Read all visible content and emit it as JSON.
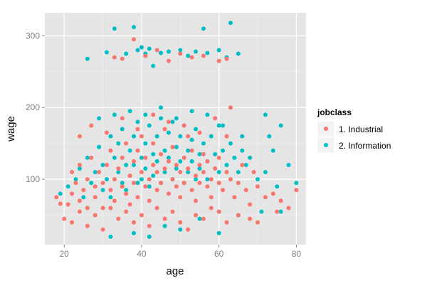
{
  "chart_data": {
    "type": "scatter",
    "title": "",
    "xlabel": "age",
    "ylabel": "wage",
    "xlim": [
      15,
      82.5
    ],
    "ylim": [
      9,
      332
    ],
    "x_ticks": [
      20,
      40,
      60,
      80
    ],
    "y_ticks": [
      100,
      200,
      300
    ],
    "grid": true,
    "legend": {
      "title": "jobclass",
      "placement": "right",
      "entries": [
        "1. Industrial",
        "2. Information"
      ]
    },
    "series": [
      {
        "name": "1. Industrial",
        "color": "#F8766D",
        "points": [
          [
            18,
            75
          ],
          [
            19,
            66
          ],
          [
            21,
            65
          ],
          [
            22,
            80
          ],
          [
            22,
            110
          ],
          [
            23,
            95
          ],
          [
            24,
            70
          ],
          [
            24,
            120
          ],
          [
            25,
            85
          ],
          [
            26,
            100
          ],
          [
            26,
            60
          ],
          [
            27,
            130
          ],
          [
            28,
            90
          ],
          [
            28,
            75
          ],
          [
            29,
            110
          ],
          [
            30,
            95
          ],
          [
            30,
            60
          ],
          [
            31,
            120
          ],
          [
            32,
            85
          ],
          [
            32,
            140
          ],
          [
            33,
            100
          ],
          [
            33,
            70
          ],
          [
            34,
            115
          ],
          [
            35,
            90
          ],
          [
            35,
            130
          ],
          [
            36,
            80
          ],
          [
            36,
            150
          ],
          [
            37,
            105
          ],
          [
            37,
            65
          ],
          [
            38,
            125
          ],
          [
            38,
            95
          ],
          [
            39,
            140
          ],
          [
            39,
            75
          ],
          [
            40,
            110
          ],
          [
            40,
            160
          ],
          [
            41,
            90
          ],
          [
            41,
            130
          ],
          [
            42,
            100
          ],
          [
            42,
            70
          ],
          [
            43,
            120
          ],
          [
            43,
            150
          ],
          [
            44,
            85
          ],
          [
            44,
            110
          ],
          [
            45,
            135
          ],
          [
            45,
            95
          ],
          [
            46,
            115
          ],
          [
            46,
            170
          ],
          [
            47,
            80
          ],
          [
            47,
            125
          ],
          [
            48,
            100
          ],
          [
            48,
            145
          ],
          [
            49,
            90
          ],
          [
            49,
            120
          ],
          [
            50,
            110
          ],
          [
            50,
            75
          ],
          [
            51,
            130
          ],
          [
            51,
            95
          ],
          [
            52,
            115
          ],
          [
            52,
            160
          ],
          [
            53,
            85
          ],
          [
            53,
            140
          ],
          [
            54,
            105
          ],
          [
            54,
            70
          ],
          [
            55,
            120
          ],
          [
            55,
            95
          ],
          [
            56,
            135
          ],
          [
            56,
            110
          ],
          [
            57,
            90
          ],
          [
            57,
            125
          ],
          [
            58,
            100
          ],
          [
            58,
            75
          ],
          [
            59,
            115
          ],
          [
            60,
            130
          ],
          [
            60,
            95
          ],
          [
            61,
            85
          ],
          [
            62,
            110
          ],
          [
            62,
            160
          ],
          [
            63,
            100
          ],
          [
            64,
            75
          ],
          [
            65,
            95
          ],
          [
            66,
            120
          ],
          [
            67,
            85
          ],
          [
            68,
            65
          ],
          [
            69,
            110
          ],
          [
            70,
            90
          ],
          [
            72,
            75
          ],
          [
            74,
            80
          ],
          [
            76,
            70
          ],
          [
            78,
            60
          ],
          [
            80,
            85
          ],
          [
            20,
            45
          ],
          [
            22,
            40
          ],
          [
            24,
            55
          ],
          [
            26,
            35
          ],
          [
            28,
            50
          ],
          [
            30,
            30
          ],
          [
            32,
            60
          ],
          [
            34,
            45
          ],
          [
            36,
            55
          ],
          [
            38,
            40
          ],
          [
            40,
            50
          ],
          [
            42,
            35
          ],
          [
            44,
            60
          ],
          [
            46,
            45
          ],
          [
            48,
            55
          ],
          [
            50,
            40
          ],
          [
            52,
            30
          ],
          [
            54,
            50
          ],
          [
            56,
            45
          ],
          [
            58,
            60
          ],
          [
            60,
            55
          ],
          [
            62,
            40
          ],
          [
            65,
            50
          ],
          [
            68,
            45
          ],
          [
            70,
            40
          ],
          [
            75,
            55
          ],
          [
            24,
            160
          ],
          [
            27,
            175
          ],
          [
            31,
            165
          ],
          [
            35,
            185
          ],
          [
            39,
            170
          ],
          [
            43,
            190
          ],
          [
            47,
            180
          ],
          [
            51,
            175
          ],
          [
            55,
            165
          ],
          [
            59,
            185
          ],
          [
            63,
            200
          ],
          [
            33,
            270
          ],
          [
            35,
            268
          ],
          [
            38,
            295
          ],
          [
            41,
            272
          ],
          [
            44,
            280
          ],
          [
            47,
            265
          ],
          [
            50,
            275
          ],
          [
            53,
            270
          ],
          [
            56,
            272
          ],
          [
            60,
            265
          ],
          [
            62,
            268
          ]
        ]
      },
      {
        "name": "2. Information",
        "color": "#00BFC4",
        "points": [
          [
            19,
            80
          ],
          [
            21,
            90
          ],
          [
            23,
            100
          ],
          [
            24,
            115
          ],
          [
            25,
            75
          ],
          [
            26,
            130
          ],
          [
            27,
            95
          ],
          [
            28,
            110
          ],
          [
            29,
            145
          ],
          [
            30,
            85
          ],
          [
            30,
            120
          ],
          [
            31,
            100
          ],
          [
            32,
            160
          ],
          [
            32,
            75
          ],
          [
            33,
            130
          ],
          [
            34,
            110
          ],
          [
            34,
            150
          ],
          [
            35,
            95
          ],
          [
            35,
            170
          ],
          [
            36,
            120
          ],
          [
            36,
            85
          ],
          [
            37,
            140
          ],
          [
            37,
            105
          ],
          [
            38,
            160
          ],
          [
            38,
            120
          ],
          [
            39,
            95
          ],
          [
            39,
            180
          ],
          [
            40,
            130
          ],
          [
            40,
            100
          ],
          [
            41,
            150
          ],
          [
            41,
            115
          ],
          [
            42,
            175
          ],
          [
            42,
            90
          ],
          [
            43,
            135
          ],
          [
            43,
            105
          ],
          [
            44,
            160
          ],
          [
            44,
            125
          ],
          [
            45,
            95
          ],
          [
            45,
            185
          ],
          [
            46,
            140
          ],
          [
            46,
            110
          ],
          [
            47,
            165
          ],
          [
            47,
            130
          ],
          [
            48,
            100
          ],
          [
            48,
            180
          ],
          [
            49,
            145
          ],
          [
            49,
            115
          ],
          [
            50,
            160
          ],
          [
            50,
            125
          ],
          [
            51,
            95
          ],
          [
            51,
            175
          ],
          [
            52,
            140
          ],
          [
            52,
            110
          ],
          [
            53,
            155
          ],
          [
            53,
            125
          ],
          [
            54,
            100
          ],
          [
            54,
            170
          ],
          [
            55,
            135
          ],
          [
            55,
            115
          ],
          [
            56,
            150
          ],
          [
            57,
            125
          ],
          [
            57,
            100
          ],
          [
            58,
            160
          ],
          [
            59,
            135
          ],
          [
            60,
            110
          ],
          [
            60,
            175
          ],
          [
            61,
            140
          ],
          [
            62,
            120
          ],
          [
            63,
            150
          ],
          [
            64,
            130
          ],
          [
            65,
            110
          ],
          [
            66,
            140
          ],
          [
            67,
            120
          ],
          [
            68,
            130
          ],
          [
            70,
            100
          ],
          [
            72,
            110
          ],
          [
            73,
            160
          ],
          [
            74,
            140
          ],
          [
            75,
            90
          ],
          [
            76,
            175
          ],
          [
            78,
            120
          ],
          [
            80,
            95
          ],
          [
            32,
            20
          ],
          [
            38,
            25
          ],
          [
            42,
            20
          ],
          [
            46,
            35
          ],
          [
            50,
            30
          ],
          [
            55,
            45
          ],
          [
            60,
            25
          ],
          [
            65,
            50
          ],
          [
            71,
            55
          ],
          [
            76,
            55
          ],
          [
            29,
            185
          ],
          [
            33,
            190
          ],
          [
            37,
            195
          ],
          [
            41,
            190
          ],
          [
            45,
            200
          ],
          [
            49,
            185
          ],
          [
            53,
            195
          ],
          [
            57,
            190
          ],
          [
            61,
            175
          ],
          [
            66,
            160
          ],
          [
            72,
            190
          ],
          [
            26,
            268
          ],
          [
            31,
            277
          ],
          [
            33,
            310
          ],
          [
            36,
            275
          ],
          [
            38,
            312
          ],
          [
            39,
            280
          ],
          [
            40,
            284
          ],
          [
            41,
            275
          ],
          [
            42,
            282
          ],
          [
            43,
            258
          ],
          [
            45,
            276
          ],
          [
            47,
            278
          ],
          [
            50,
            280
          ],
          [
            52,
            272
          ],
          [
            54,
            278
          ],
          [
            56,
            310
          ],
          [
            57,
            276
          ],
          [
            60,
            280
          ],
          [
            62,
            270
          ],
          [
            63,
            318
          ],
          [
            65,
            275
          ]
        ]
      }
    ]
  }
}
